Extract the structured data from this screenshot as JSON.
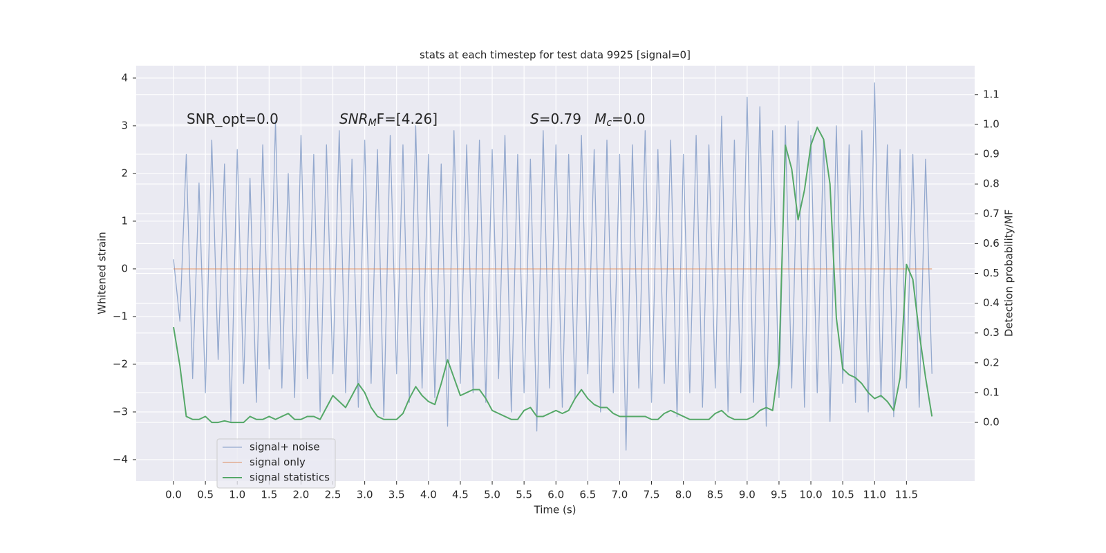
{
  "chart_data": {
    "type": "line",
    "title": "stats at each timestep for test data 9925 [signal=0]",
    "xlabel": "Time (s)",
    "ylabel": "Whitened strain",
    "y2label": "Detection probability/MF",
    "annotations": [
      [
        {
          "text": "SNR_opt=0.0",
          "style": "normal"
        }
      ],
      [
        {
          "text": "SNR",
          "style": "italic"
        },
        {
          "text": "M",
          "style": "sub"
        },
        {
          "text": "F=[4.26]",
          "style": "normal"
        }
      ],
      [
        {
          "text": "S",
          "style": "italic"
        },
        {
          "text": "=0.79   ",
          "style": "normal"
        },
        {
          "text": "M",
          "style": "italic"
        },
        {
          "text": "c",
          "style": "sub"
        },
        {
          "text": "=0.0",
          "style": "normal"
        }
      ]
    ],
    "x": [
      0.0,
      0.1,
      0.2,
      0.3,
      0.4,
      0.5,
      0.6,
      0.7,
      0.8,
      0.9,
      1.0,
      1.1,
      1.2,
      1.3,
      1.4,
      1.5,
      1.6,
      1.7,
      1.8,
      1.9,
      2.0,
      2.1,
      2.2,
      2.3,
      2.4,
      2.5,
      2.6,
      2.7,
      2.8,
      2.9,
      3.0,
      3.1,
      3.2,
      3.3,
      3.4,
      3.5,
      3.6,
      3.7,
      3.8,
      3.9,
      4.0,
      4.1,
      4.2,
      4.3,
      4.4,
      4.5,
      4.6,
      4.7,
      4.8,
      4.9,
      5.0,
      5.1,
      5.2,
      5.3,
      5.4,
      5.5,
      5.6,
      5.7,
      5.8,
      5.9,
      6.0,
      6.1,
      6.2,
      6.3,
      6.4,
      6.5,
      6.6,
      6.7,
      6.8,
      6.9,
      7.0,
      7.1,
      7.2,
      7.3,
      7.4,
      7.5,
      7.6,
      7.7,
      7.8,
      7.9,
      8.0,
      8.1,
      8.2,
      8.3,
      8.4,
      8.5,
      8.6,
      8.7,
      8.8,
      8.9,
      9.0,
      9.1,
      9.2,
      9.3,
      9.4,
      9.5,
      9.6,
      9.7,
      9.8,
      9.9,
      10.0,
      10.1,
      10.2,
      10.3,
      10.4,
      10.5,
      10.6,
      10.7,
      10.8,
      10.9,
      11.0,
      11.1,
      11.2,
      11.3,
      11.4,
      11.5,
      11.6,
      11.7,
      11.8,
      11.9
    ],
    "series": [
      {
        "name": "signal+ noise",
        "color": "#4c72b0",
        "axis": "y",
        "values": [
          0.2,
          -1.1,
          2.4,
          -2.3,
          1.8,
          -2.6,
          2.7,
          -1.9,
          2.2,
          -3.2,
          2.5,
          -2.4,
          1.9,
          -2.8,
          2.6,
          -2.1,
          3.1,
          -2.5,
          2.0,
          -2.7,
          2.8,
          -2.3,
          2.4,
          -3.0,
          2.6,
          -2.2,
          2.9,
          -2.6,
          2.3,
          -2.9,
          2.7,
          -2.4,
          2.5,
          -3.1,
          2.8,
          -2.2,
          2.6,
          -2.8,
          3.0,
          -2.5,
          2.4,
          -2.7,
          2.2,
          -3.3,
          2.9,
          -2.4,
          2.6,
          -2.6,
          2.7,
          -2.8,
          2.5,
          -2.3,
          2.8,
          -3.0,
          2.4,
          -2.6,
          2.3,
          -3.4,
          2.9,
          -2.5,
          2.6,
          -2.9,
          2.4,
          -2.7,
          2.8,
          -2.2,
          2.5,
          -3.0,
          2.7,
          -2.6,
          2.4,
          -3.8,
          2.6,
          -2.5,
          2.9,
          -2.8,
          2.5,
          -2.4,
          2.7,
          -3.1,
          2.4,
          -2.6,
          2.8,
          -2.9,
          2.6,
          -2.5,
          3.2,
          -3.0,
          2.7,
          -2.6,
          3.6,
          -2.8,
          3.4,
          -3.3,
          2.9,
          -2.7,
          3.0,
          -2.5,
          3.1,
          -2.9,
          2.8,
          -2.6,
          2.7,
          -3.2,
          3.0,
          -2.4,
          2.6,
          -2.8,
          2.9,
          -3.0,
          3.9,
          -2.7,
          2.6,
          -3.1,
          2.5,
          -2.5,
          2.4,
          -2.9,
          2.3,
          -2.2
        ]
      },
      {
        "name": "signal only",
        "color": "#dd8452",
        "axis": "y",
        "values": [
          0,
          0,
          0,
          0,
          0,
          0,
          0,
          0,
          0,
          0,
          0,
          0,
          0,
          0,
          0,
          0,
          0,
          0,
          0,
          0,
          0,
          0,
          0,
          0,
          0,
          0,
          0,
          0,
          0,
          0,
          0,
          0,
          0,
          0,
          0,
          0,
          0,
          0,
          0,
          0,
          0,
          0,
          0,
          0,
          0,
          0,
          0,
          0,
          0,
          0,
          0,
          0,
          0,
          0,
          0,
          0,
          0,
          0,
          0,
          0,
          0,
          0,
          0,
          0,
          0,
          0,
          0,
          0,
          0,
          0,
          0,
          0,
          0,
          0,
          0,
          0,
          0,
          0,
          0,
          0,
          0,
          0,
          0,
          0,
          0,
          0,
          0,
          0,
          0,
          0,
          0,
          0,
          0,
          0,
          0,
          0,
          0,
          0,
          0,
          0,
          0,
          0,
          0,
          0,
          0,
          0,
          0,
          0,
          0,
          0,
          0,
          0,
          0,
          0,
          0,
          0,
          0,
          0,
          0,
          0
        ]
      },
      {
        "name": "signal statistics",
        "color": "#55a868",
        "axis": "y2",
        "values": [
          0.32,
          0.19,
          0.02,
          0.01,
          0.01,
          0.02,
          0.0,
          0.0,
          0.005,
          0.0,
          0.0,
          0.0,
          0.02,
          0.01,
          0.01,
          0.02,
          0.01,
          0.02,
          0.03,
          0.01,
          0.01,
          0.02,
          0.02,
          0.01,
          0.05,
          0.09,
          0.07,
          0.05,
          0.09,
          0.13,
          0.1,
          0.05,
          0.02,
          0.01,
          0.01,
          0.01,
          0.03,
          0.08,
          0.12,
          0.09,
          0.07,
          0.06,
          0.13,
          0.21,
          0.15,
          0.09,
          0.1,
          0.11,
          0.11,
          0.08,
          0.04,
          0.03,
          0.02,
          0.01,
          0.01,
          0.04,
          0.05,
          0.02,
          0.02,
          0.03,
          0.04,
          0.03,
          0.04,
          0.08,
          0.11,
          0.08,
          0.06,
          0.05,
          0.05,
          0.03,
          0.02,
          0.02,
          0.02,
          0.02,
          0.02,
          0.01,
          0.01,
          0.03,
          0.04,
          0.03,
          0.02,
          0.01,
          0.01,
          0.01,
          0.01,
          0.03,
          0.04,
          0.02,
          0.01,
          0.01,
          0.01,
          0.02,
          0.04,
          0.05,
          0.04,
          0.2,
          0.93,
          0.85,
          0.68,
          0.78,
          0.93,
          0.99,
          0.95,
          0.8,
          0.35,
          0.18,
          0.16,
          0.15,
          0.13,
          0.1,
          0.08,
          0.09,
          0.07,
          0.04,
          0.15,
          0.53,
          0.48,
          0.3,
          0.15,
          0.02
        ]
      }
    ],
    "xlim": [
      -0.586,
      12.57
    ],
    "ylim": [
      -4.45,
      4.26
    ],
    "y2lim": [
      -0.197,
      1.197
    ],
    "xticks": [
      {
        "value": 0,
        "label": "0.0"
      },
      0.5,
      {
        "value": 1,
        "label": "1.0"
      },
      1.5,
      {
        "value": 2,
        "label": "2.0"
      },
      2.5,
      {
        "value": 3,
        "label": "3.0"
      },
      3.5,
      {
        "value": 4,
        "label": "4.0"
      },
      4.5,
      {
        "value": 5,
        "label": "5.0"
      },
      5.5,
      {
        "value": 6,
        "label": "6.0"
      },
      6.5,
      {
        "value": 7,
        "label": "7.0"
      },
      7.5,
      {
        "value": 8,
        "label": "8.0"
      },
      8.5,
      {
        "value": 9,
        "label": "9.0"
      },
      9.5,
      {
        "value": 10,
        "label": "10.0"
      },
      10.5,
      {
        "value": 11,
        "label": "11.0"
      },
      11.5
    ],
    "yticks": [
      {
        "value": -4,
        "label": "−4"
      },
      {
        "value": -3,
        "label": "−3"
      },
      {
        "value": -2,
        "label": "−2"
      },
      {
        "value": -1,
        "label": "−1"
      },
      0,
      1,
      2,
      3,
      4
    ],
    "y2ticks": [
      {
        "value": 0,
        "label": "0.0"
      },
      0.1,
      0.2,
      0.3,
      0.4,
      0.5,
      0.6,
      0.7,
      0.8,
      0.9,
      {
        "value": 1,
        "label": "1.0"
      },
      1.1
    ],
    "grid": true,
    "legend": "lower left"
  }
}
